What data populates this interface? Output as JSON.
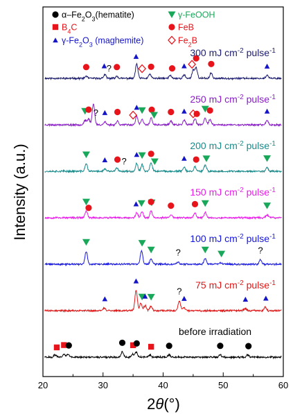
{
  "chart_data": {
    "type": "line",
    "xlabel": "2θ(°)",
    "ylabel": "Intensity (a.u.)",
    "xlim": [
      20,
      60
    ],
    "xticks": [
      20,
      30,
      40,
      50,
      60
    ],
    "grid": false,
    "legend_position": "top-left",
    "legend": [
      {
        "marker": "circle",
        "color": "#000000",
        "label": "α–Fe2O3(hematite)"
      },
      {
        "marker": "triangle-down",
        "color": "#19a85a",
        "label": "γ-FeOOH"
      },
      {
        "marker": "square",
        "color": "#e8141c",
        "label": "B4C"
      },
      {
        "marker": "circle",
        "color": "#e8141c",
        "label": "FeB"
      },
      {
        "marker": "triangle-up",
        "color": "#1515c8",
        "label": "γ-Fe2O3 (maghemite)"
      },
      {
        "marker": "diamond-open",
        "color": "#e8141c",
        "label": "Fe2B"
      }
    ],
    "series": [
      {
        "name": "300 mJ cm-2 pulse-1",
        "label_parts": [
          "300 mJ cm",
          "-2",
          " pulse",
          "-1"
        ],
        "color": "#1c1c6e",
        "offset": 6,
        "seed": 11,
        "peaks": [
          [
            27.2,
            0.15
          ],
          [
            30.3,
            0.25
          ],
          [
            32.3,
            0.15
          ],
          [
            35.6,
            0.95
          ],
          [
            37.8,
            0.28
          ],
          [
            41.2,
            0.2
          ],
          [
            43.5,
            0.22
          ],
          [
            45.0,
            0.55
          ],
          [
            45.5,
            0.7
          ],
          [
            48.0,
            0.35
          ],
          [
            57.3,
            0.2
          ]
        ],
        "markers": [
          {
            "type": "circle-red",
            "x": 27.2
          },
          {
            "type": "tri-up",
            "x": 30.2
          },
          {
            "type": "q",
            "x": 31.0
          },
          {
            "type": "circle-red",
            "x": 32.3
          },
          {
            "type": "tri-up",
            "x": 35.5
          },
          {
            "type": "diamond",
            "x": 36.5
          },
          {
            "type": "circle-red",
            "x": 38.0
          },
          {
            "type": "circle-red",
            "x": 41.5
          },
          {
            "type": "tri-up",
            "x": 43.5
          },
          {
            "type": "diamond",
            "x": 44.8
          },
          {
            "type": "circle-red",
            "x": 45.5
          },
          {
            "type": "circle-red",
            "x": 48.0
          },
          {
            "type": "tri-up",
            "x": 57.3
          }
        ]
      },
      {
        "name": "250 mJ cm-2 pulse-1",
        "label_parts": [
          "250 mJ cm",
          "-2",
          " pulse",
          "-1"
        ],
        "color": "#8a1cc8",
        "offset": 5,
        "seed": 23,
        "peaks": [
          [
            27.0,
            0.3
          ],
          [
            27.6,
            0.4
          ],
          [
            28.4,
            1.4
          ],
          [
            30.3,
            0.2
          ],
          [
            32.4,
            0.25
          ],
          [
            35.6,
            0.55
          ],
          [
            36.5,
            0.35
          ],
          [
            38.0,
            0.45
          ],
          [
            41.3,
            0.25
          ],
          [
            43.5,
            0.3
          ],
          [
            45.3,
            0.4
          ],
          [
            47.0,
            0.45
          ],
          [
            47.8,
            0.35
          ],
          [
            57.3,
            0.3
          ]
        ],
        "markers": [
          {
            "type": "tri-down",
            "x": 27.0
          },
          {
            "type": "circle-red",
            "x": 27.6
          },
          {
            "type": "q",
            "x": 28.8
          },
          {
            "type": "tri-up",
            "x": 30.3
          },
          {
            "type": "circle-red",
            "x": 32.4
          },
          {
            "type": "diamond",
            "x": 35.0
          },
          {
            "type": "tri-up",
            "x": 35.6
          },
          {
            "type": "tri-down",
            "x": 36.5
          },
          {
            "type": "circle-red",
            "x": 38.1
          },
          {
            "type": "tri-down",
            "x": 38.5
          },
          {
            "type": "circle-red",
            "x": 41.3
          },
          {
            "type": "tri-up",
            "x": 43.5
          },
          {
            "type": "diamond",
            "x": 45.0
          },
          {
            "type": "circle-red",
            "x": 45.6
          },
          {
            "type": "tri-down",
            "x": 47.0
          },
          {
            "type": "circle-red",
            "x": 47.8
          },
          {
            "type": "tri-up",
            "x": 57.3
          }
        ]
      },
      {
        "name": "200 mJ cm-2 pulse-1",
        "label_parts": [
          "200 mJ cm",
          "-2",
          " pulse",
          "-1"
        ],
        "color": "#1a8a8a",
        "offset": 4,
        "seed": 37,
        "peaks": [
          [
            27.2,
            0.5
          ],
          [
            30.3,
            0.15
          ],
          [
            32.3,
            0.2
          ],
          [
            35.6,
            0.5
          ],
          [
            36.5,
            0.45
          ],
          [
            38.0,
            0.55
          ],
          [
            43.5,
            0.25
          ],
          [
            45.3,
            0.3
          ],
          [
            47.0,
            0.4
          ],
          [
            57.3,
            0.25
          ]
        ],
        "markers": [
          {
            "type": "tri-down",
            "x": 27.2
          },
          {
            "type": "tri-up",
            "x": 30.3
          },
          {
            "type": "circle-red",
            "x": 32.4
          },
          {
            "type": "q",
            "x": 33.5
          },
          {
            "type": "tri-up",
            "x": 35.6
          },
          {
            "type": "tri-down",
            "x": 36.5
          },
          {
            "type": "circle-red",
            "x": 38.0
          },
          {
            "type": "tri-down",
            "x": 38.6
          },
          {
            "type": "tri-up",
            "x": 43.5
          },
          {
            "type": "circle-red",
            "x": 45.5
          },
          {
            "type": "tri-down",
            "x": 47.2
          },
          {
            "type": "tri-down",
            "x": 57.3
          }
        ]
      },
      {
        "name": "150 mJ cm-2 pulse-1",
        "label_parts": [
          "150 mJ cm",
          "-2",
          " pulse",
          "-1"
        ],
        "color": "#e81ce8",
        "offset": 3,
        "seed": 53,
        "peaks": [
          [
            27.2,
            0.45
          ],
          [
            35.6,
            0.35
          ],
          [
            36.5,
            0.4
          ],
          [
            38.0,
            0.45
          ],
          [
            41.3,
            0.2
          ],
          [
            45.3,
            0.3
          ],
          [
            47.0,
            0.35
          ],
          [
            57.3,
            0.2
          ]
        ],
        "markers": [
          {
            "type": "tri-down",
            "x": 27.2
          },
          {
            "type": "circle-red",
            "x": 27.6
          },
          {
            "type": "tri-up",
            "x": 35.5
          },
          {
            "type": "tri-down",
            "x": 36.4
          },
          {
            "type": "tri-down",
            "x": 38.1
          },
          {
            "type": "circle-red",
            "x": 38.0
          },
          {
            "type": "circle-red",
            "x": 41.3
          },
          {
            "type": "circle-red",
            "x": 45.3
          },
          {
            "type": "tri-down",
            "x": 47.0
          },
          {
            "type": "tri-down",
            "x": 57.3
          }
        ]
      },
      {
        "name": "100 mJ cm-2 pulse-1",
        "label_parts": [
          "100 mJ cm",
          "-2",
          " pulse",
          "-1"
        ],
        "color": "#1515e0",
        "offset": 2,
        "seed": 71,
        "peaks": [
          [
            27.2,
            0.85
          ],
          [
            36.4,
            0.9
          ],
          [
            38.0,
            0.35
          ],
          [
            42.5,
            0.15
          ],
          [
            47.0,
            0.35
          ],
          [
            49.6,
            0.1
          ],
          [
            56.2,
            0.3
          ]
        ],
        "markers": [
          {
            "type": "tri-down",
            "x": 27.2
          },
          {
            "type": "tri-down",
            "x": 36.5
          },
          {
            "type": "tri-down",
            "x": 38.0
          },
          {
            "type": "q",
            "x": 42.5
          },
          {
            "type": "tri-down",
            "x": 47.0
          },
          {
            "type": "tri-down",
            "x": 49.7
          },
          {
            "type": "q",
            "x": 56.2
          }
        ]
      },
      {
        "name": "75 mJ cm-2 pulse-1",
        "label_parts": [
          "75 mJ cm",
          "-2",
          " pulse",
          "-1"
        ],
        "color": "#e01515",
        "offset": 1,
        "seed": 89,
        "peaks": [
          [
            30.2,
            0.2
          ],
          [
            35.5,
            1.35
          ],
          [
            36.3,
            0.5
          ],
          [
            37.0,
            0.35
          ],
          [
            38.0,
            0.3
          ],
          [
            42.7,
            0.65
          ],
          [
            43.5,
            0.2
          ],
          [
            53.7,
            0.15
          ],
          [
            57.0,
            0.25
          ]
        ],
        "markers": [
          {
            "type": "tri-up",
            "x": 30.3
          },
          {
            "type": "tri-up",
            "x": 35.5
          },
          {
            "type": "tri-down",
            "x": 36.5
          },
          {
            "type": "tri-up",
            "x": 37.0
          },
          {
            "type": "tri-down",
            "x": 38.0
          },
          {
            "type": "q",
            "x": 42.7
          },
          {
            "type": "tri-up",
            "x": 43.5
          },
          {
            "type": "tri-up",
            "x": 53.7
          },
          {
            "type": "tri-up",
            "x": 57.1
          }
        ]
      },
      {
        "name": "before irradiation",
        "label_parts": [
          "before irradiation"
        ],
        "color": "#000000",
        "offset": 0,
        "seed": 101,
        "peaks": [
          [
            22.0,
            0.15
          ],
          [
            23.5,
            0.2
          ],
          [
            24.2,
            0.2
          ],
          [
            33.2,
            0.35
          ],
          [
            35.5,
            0.35
          ],
          [
            34.9,
            0.2
          ],
          [
            37.8,
            0.15
          ],
          [
            41.0,
            0.15
          ],
          [
            49.5,
            0.15
          ],
          [
            54.1,
            0.15
          ]
        ],
        "markers": [
          {
            "type": "square",
            "x": 22.3
          },
          {
            "type": "square",
            "x": 23.5
          },
          {
            "type": "circle-black",
            "x": 24.3
          },
          {
            "type": "circle-black",
            "x": 33.2
          },
          {
            "type": "square",
            "x": 35.0
          },
          {
            "type": "circle-black",
            "x": 35.6
          },
          {
            "type": "square",
            "x": 38.0
          },
          {
            "type": "circle-black",
            "x": 41.0
          },
          {
            "type": "circle-black",
            "x": 49.5
          },
          {
            "type": "circle-black",
            "x": 54.2
          }
        ]
      }
    ]
  }
}
